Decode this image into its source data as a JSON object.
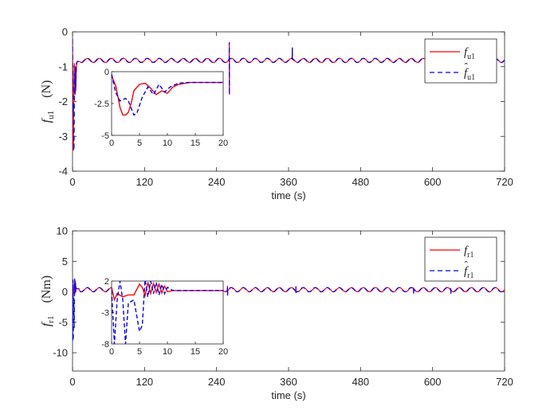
{
  "chart_data": [
    {
      "type": "line",
      "xlabel": "time (s)",
      "ylabel_main": "f",
      "ylabel_sub": "u1",
      "ylabel_unit": "(N)",
      "xlim": [
        0,
        720
      ],
      "ylim": [
        -4,
        0
      ],
      "xticks": [
        0,
        120,
        240,
        360,
        480,
        600,
        720
      ],
      "yticks": [
        -4,
        -3,
        -2,
        -1,
        0
      ],
      "legend_position": "top-right",
      "series": [
        {
          "name_main": "f",
          "name_sub": "u1",
          "hat": false,
          "color": "#ff0000",
          "dash": "solid"
        },
        {
          "name_main": "f",
          "name_sub": "u1",
          "hat": true,
          "color": "#0000ff",
          "dash": "dashed"
        }
      ],
      "signal": {
        "baseline": -0.82,
        "amplitude": 0.06,
        "period_s": 20,
        "spikes": [
          {
            "x": 261,
            "y_max": -0.3,
            "y_min": -1.8
          },
          {
            "x": 366,
            "y_max": -0.45,
            "y_min": -0.8
          }
        ]
      },
      "transient": {
        "red": [
          [
            0,
            -0.3
          ],
          [
            0.8,
            -1.2
          ],
          [
            1.5,
            -2.8
          ],
          [
            2,
            -3.4
          ],
          [
            2.5,
            -3.4
          ],
          [
            3,
            -3.2
          ],
          [
            3.5,
            -2.5
          ],
          [
            4,
            -1.5
          ],
          [
            5,
            -1.0
          ],
          [
            6,
            -0.9
          ],
          [
            7,
            -1.3
          ],
          [
            8,
            -1.8
          ],
          [
            9,
            -1.5
          ],
          [
            10,
            -1.7
          ],
          [
            11,
            -1.2
          ],
          [
            12,
            -1.0
          ],
          [
            14,
            -0.85
          ],
          [
            20,
            -0.85
          ]
        ],
        "blue": [
          [
            0,
            -0.2
          ],
          [
            0.7,
            -1.6
          ],
          [
            1.5,
            -2.3
          ],
          [
            2.5,
            -2.1
          ],
          [
            3,
            -2.3
          ],
          [
            4,
            -3.4
          ],
          [
            4.5,
            -3.3
          ],
          [
            5.5,
            -2.0
          ],
          [
            6.5,
            -1.2
          ],
          [
            7.5,
            -1.8
          ],
          [
            8.5,
            -1.0
          ],
          [
            9.5,
            -1.6
          ],
          [
            10.5,
            -1.2
          ],
          [
            12,
            -0.9
          ],
          [
            14,
            -0.85
          ],
          [
            20,
            -0.85
          ]
        ]
      },
      "inset": {
        "xlim": [
          0,
          20
        ],
        "ylim": [
          -5,
          0
        ],
        "xticks": [
          0,
          5,
          10,
          15,
          20
        ],
        "yticks": [
          0,
          -2.5,
          -5
        ],
        "ytick_labels": [
          "0",
          "-2.5",
          "-5"
        ]
      }
    },
    {
      "type": "line",
      "xlabel": "time (s)",
      "ylabel_main": "f",
      "ylabel_sub": "r1",
      "ylabel_unit": "(Nm)",
      "xlim": [
        0,
        720
      ],
      "ylim": [
        -13,
        10
      ],
      "xticks": [
        0,
        120,
        240,
        360,
        480,
        600,
        720
      ],
      "yticks": [
        10,
        5,
        0,
        -5,
        -10
      ],
      "legend_position": "top-right",
      "series": [
        {
          "name_main": "f",
          "name_sub": "r1",
          "hat": false,
          "color": "#ff0000",
          "dash": "solid"
        },
        {
          "name_main": "f",
          "name_sub": "r1",
          "hat": true,
          "color": "#0000ff",
          "dash": "dashed"
        }
      ],
      "signal": {
        "baseline": 0.35,
        "amplitude": 0.35,
        "period_s": 20,
        "spikes": [
          {
            "x": 258,
            "y_max": 1.0,
            "y_min": -0.6
          },
          {
            "x": 372,
            "y_max": 0.9,
            "y_min": -0.2
          },
          {
            "x": 568,
            "y_max": 0.7,
            "y_min": -0.3
          },
          {
            "x": 630,
            "y_max": 0.6,
            "y_min": -0.3
          }
        ]
      },
      "transient": {
        "red": [
          [
            0,
            1.0
          ],
          [
            0.5,
            -1.0
          ],
          [
            1,
            0.0
          ],
          [
            2,
            -0.5
          ],
          [
            3,
            -0.2
          ],
          [
            4,
            -0.2
          ],
          [
            5,
            1.5
          ],
          [
            5.5,
            1.0
          ],
          [
            6,
            -0.3
          ],
          [
            6.5,
            1.8
          ],
          [
            7,
            0.0
          ],
          [
            7.5,
            1.6
          ],
          [
            8,
            0.2
          ],
          [
            8.5,
            1.5
          ],
          [
            9,
            0.1
          ],
          [
            9.5,
            1.2
          ],
          [
            10,
            0.3
          ],
          [
            11,
            0.5
          ],
          [
            20,
            0.5
          ]
        ],
        "blue": [
          [
            0,
            0.5
          ],
          [
            0.5,
            -8.0
          ],
          [
            1,
            -1.0
          ],
          [
            1.5,
            2.0
          ],
          [
            2,
            -1.0
          ],
          [
            2.5,
            -8.0
          ],
          [
            3,
            -1.5
          ],
          [
            4,
            -1.0
          ],
          [
            5,
            -6.0
          ],
          [
            5.5,
            -5.0
          ],
          [
            6,
            2.2
          ],
          [
            6.5,
            -0.5
          ],
          [
            7,
            2.0
          ],
          [
            7.5,
            0.0
          ],
          [
            8,
            1.8
          ],
          [
            8.5,
            -0.2
          ],
          [
            9,
            1.5
          ],
          [
            9.5,
            0.0
          ],
          [
            10,
            1.0
          ],
          [
            11,
            0.5
          ],
          [
            20,
            0.5
          ]
        ]
      },
      "inset": {
        "xlim": [
          0,
          20
        ],
        "ylim": [
          -8,
          2
        ],
        "xticks": [
          0,
          5,
          10,
          15,
          20
        ],
        "yticks": [
          2,
          -3,
          -8
        ],
        "ytick_labels": [
          "2",
          "-3",
          "-8"
        ]
      }
    }
  ]
}
